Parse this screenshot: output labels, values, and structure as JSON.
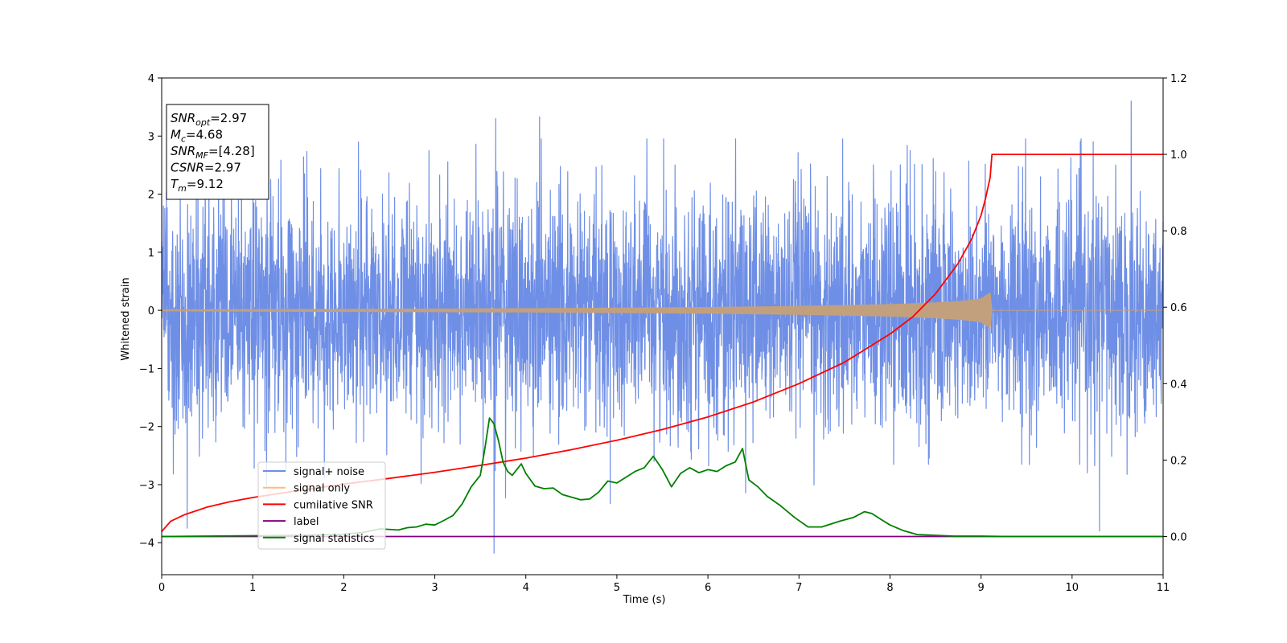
{
  "chart_data": {
    "type": "line",
    "title": "",
    "xlabel": "Time (s)",
    "ylabel": "Whitened strain",
    "y2label": "",
    "xlim": [
      0,
      11
    ],
    "ylim": [
      -4.55,
      4
    ],
    "y2lim": [
      -0.1,
      1.2
    ],
    "xticks": [
      "0",
      "1",
      "2",
      "3",
      "4",
      "5",
      "6",
      "7",
      "8",
      "9",
      "10",
      "11"
    ],
    "yticks": [
      "4",
      "3",
      "2",
      "1",
      "0",
      "−1",
      "−2",
      "−3",
      "−4"
    ],
    "y2ticks": [
      "1.2",
      "1.0",
      "0.8",
      "0.6",
      "0.4",
      "0.2",
      "0.0"
    ],
    "colors": {
      "signal_noise": "#6f8fe6",
      "signal_only": "#c2a07e",
      "cumulative_snr": "#ff0000",
      "label": "#800080",
      "signal_statistics": "#008000"
    },
    "legend": {
      "placement": "lower-left",
      "entries": [
        {
          "label": "signal+ noise",
          "color": "#6f8fe6"
        },
        {
          "label": "signal only",
          "color": "#ffbb78"
        },
        {
          "label": "cumilative SNR",
          "color": "#ff0000"
        },
        {
          "label": "label",
          "color": "#800080"
        },
        {
          "label": "signal statistics",
          "color": "#008000"
        }
      ]
    },
    "annotation": [
      {
        "main": "SNR",
        "sub": "opt",
        "rest": "=2.97"
      },
      {
        "main": "M",
        "sub": "c",
        "rest": "=4.68"
      },
      {
        "main": "SNR",
        "sub": "MF",
        "rest": "=[4.28]"
      },
      {
        "main": "CSNR",
        "sub": "",
        "rest": "=2.97"
      },
      {
        "main": "T",
        "sub": "m",
        "rest": "=9.12"
      }
    ],
    "series": [
      {
        "name": "signal+ noise",
        "axis": "left",
        "noise_std": 1.0,
        "approx_range": [
          -4.2,
          3.6
        ],
        "peaks": [
          {
            "x": 0.28,
            "y": -3.75
          },
          {
            "x": 3.65,
            "y": -4.18
          },
          {
            "x": 3.67,
            "y": 3.3
          },
          {
            "x": 4.15,
            "y": 3.33
          },
          {
            "x": 10.3,
            "y": -3.8
          },
          {
            "x": 10.65,
            "y": 3.6
          }
        ]
      },
      {
        "name": "signal only",
        "axis": "left",
        "envelope": [
          {
            "x": 0,
            "y": 0.01
          },
          {
            "x": 2,
            "y": 0.02
          },
          {
            "x": 4,
            "y": 0.03
          },
          {
            "x": 6,
            "y": 0.05
          },
          {
            "x": 7,
            "y": 0.07
          },
          {
            "x": 8,
            "y": 0.1
          },
          {
            "x": 8.5,
            "y": 0.13
          },
          {
            "x": 8.8,
            "y": 0.16
          },
          {
            "x": 9.0,
            "y": 0.2
          },
          {
            "x": 9.1,
            "y": 0.3
          },
          {
            "x": 9.12,
            "y": 0.0
          },
          {
            "x": 11,
            "y": 0.0
          }
        ]
      },
      {
        "name": "cumilative SNR",
        "axis": "right",
        "x": [
          0,
          0.1,
          0.25,
          0.5,
          0.75,
          1,
          1.5,
          2,
          2.5,
          3,
          3.5,
          4,
          4.5,
          5,
          5.5,
          6,
          6.5,
          7,
          7.5,
          8,
          8.25,
          8.5,
          8.75,
          8.9,
          9.0,
          9.05,
          9.1,
          9.12,
          9.5,
          10,
          10.5,
          11
        ],
        "y": [
          0.013,
          0.04,
          0.057,
          0.077,
          0.091,
          0.102,
          0.12,
          0.137,
          0.152,
          0.168,
          0.186,
          0.205,
          0.227,
          0.252,
          0.28,
          0.313,
          0.352,
          0.4,
          0.456,
          0.53,
          0.575,
          0.635,
          0.715,
          0.78,
          0.84,
          0.885,
          0.94,
          1.0,
          1.0,
          1.0,
          1.0,
          1.0
        ]
      },
      {
        "name": "label",
        "axis": "right",
        "x": [
          0,
          11
        ],
        "y": [
          0,
          0
        ]
      },
      {
        "name": "signal statistics",
        "axis": "right",
        "x": [
          0,
          0.5,
          1.0,
          1.5,
          2.0,
          2.2,
          2.4,
          2.6,
          2.7,
          2.8,
          2.9,
          3.0,
          3.1,
          3.2,
          3.3,
          3.4,
          3.5,
          3.55,
          3.6,
          3.65,
          3.7,
          3.75,
          3.8,
          3.85,
          3.9,
          3.95,
          4.0,
          4.1,
          4.2,
          4.3,
          4.4,
          4.5,
          4.6,
          4.7,
          4.8,
          4.9,
          5.0,
          5.1,
          5.2,
          5.3,
          5.4,
          5.5,
          5.6,
          5.7,
          5.8,
          5.9,
          6.0,
          6.1,
          6.2,
          6.3,
          6.38,
          6.45,
          6.55,
          6.65,
          6.8,
          6.95,
          7.1,
          7.25,
          7.45,
          7.6,
          7.72,
          7.8,
          7.9,
          8.0,
          8.15,
          8.3,
          8.5,
          8.7,
          9.0,
          9.3,
          9.6,
          10.0,
          10.5,
          11.0
        ],
        "y": [
          0.0,
          0.001,
          0.002,
          0.003,
          0.006,
          0.01,
          0.02,
          0.017,
          0.023,
          0.025,
          0.032,
          0.03,
          0.042,
          0.055,
          0.085,
          0.13,
          0.16,
          0.23,
          0.31,
          0.295,
          0.25,
          0.195,
          0.17,
          0.16,
          0.175,
          0.19,
          0.165,
          0.132,
          0.125,
          0.127,
          0.11,
          0.103,
          0.096,
          0.098,
          0.116,
          0.145,
          0.14,
          0.155,
          0.17,
          0.18,
          0.21,
          0.175,
          0.13,
          0.165,
          0.18,
          0.167,
          0.175,
          0.17,
          0.185,
          0.195,
          0.23,
          0.148,
          0.13,
          0.105,
          0.08,
          0.05,
          0.025,
          0.025,
          0.04,
          0.05,
          0.065,
          0.06,
          0.045,
          0.03,
          0.015,
          0.005,
          0.003,
          0.001,
          0.001,
          0.0,
          0.0,
          0.0,
          0.0,
          0.0
        ]
      }
    ]
  }
}
